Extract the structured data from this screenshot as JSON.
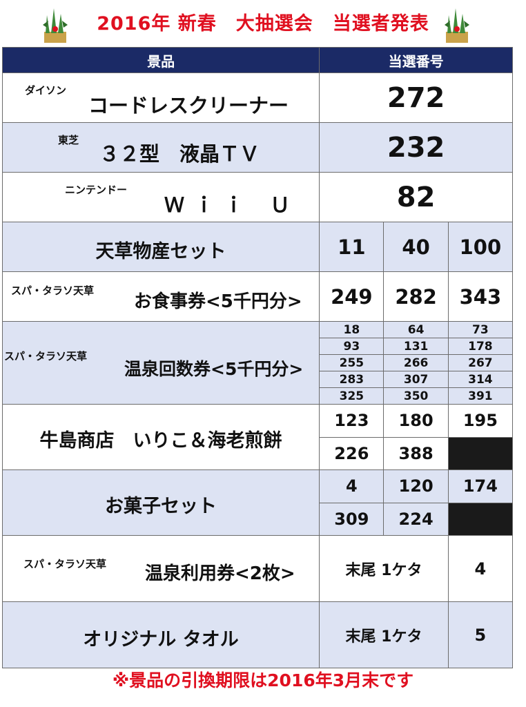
{
  "title": "2016年 新春　大抽選会　当選者発表",
  "header": {
    "prize": "景品",
    "number": "当選番号"
  },
  "rows": {
    "r1": {
      "maker": "ダイソン",
      "name": "コードレスクリーナー",
      "number": "272"
    },
    "r2": {
      "maker": "東芝",
      "name": "３２型　液晶ＴＶ",
      "number": "232"
    },
    "r3": {
      "maker": "ニンテンドー",
      "name": "Ｗｉｉ Ｕ",
      "number": "82"
    },
    "r4": {
      "name": "天草物産セット",
      "numbers": [
        "11",
        "40",
        "100"
      ]
    },
    "r5": {
      "maker": "スパ・タラソ天草",
      "name": "お食事券<5千円分>",
      "numbers": [
        "249",
        "282",
        "343"
      ]
    },
    "r6": {
      "maker": "スパ・タラソ天草",
      "name": "温泉回数券<5千円分>",
      "numbers": [
        [
          "18",
          "64",
          "73"
        ],
        [
          "93",
          "131",
          "178"
        ],
        [
          "255",
          "266",
          "267"
        ],
        [
          "283",
          "307",
          "314"
        ],
        [
          "325",
          "350",
          "391"
        ]
      ]
    },
    "r7": {
      "name": "牛島商店　いりこ＆海老煎餅",
      "numbers": [
        [
          "123",
          "180",
          "195"
        ],
        [
          "226",
          "388"
        ]
      ]
    },
    "r8": {
      "name": "お菓子セット",
      "numbers": [
        [
          "4",
          "120",
          "174"
        ],
        [
          "309",
          "224"
        ]
      ]
    },
    "r9": {
      "maker": "スパ・タラソ天草",
      "name": "温泉利用券<2枚>",
      "rule": "末尾 1ケタ",
      "digit": "4"
    },
    "r10": {
      "name": "オリジナル タオル",
      "rule": "末尾 1ケタ",
      "digit": "5"
    }
  },
  "note": "※景品の引換期限は2016年3月末です"
}
